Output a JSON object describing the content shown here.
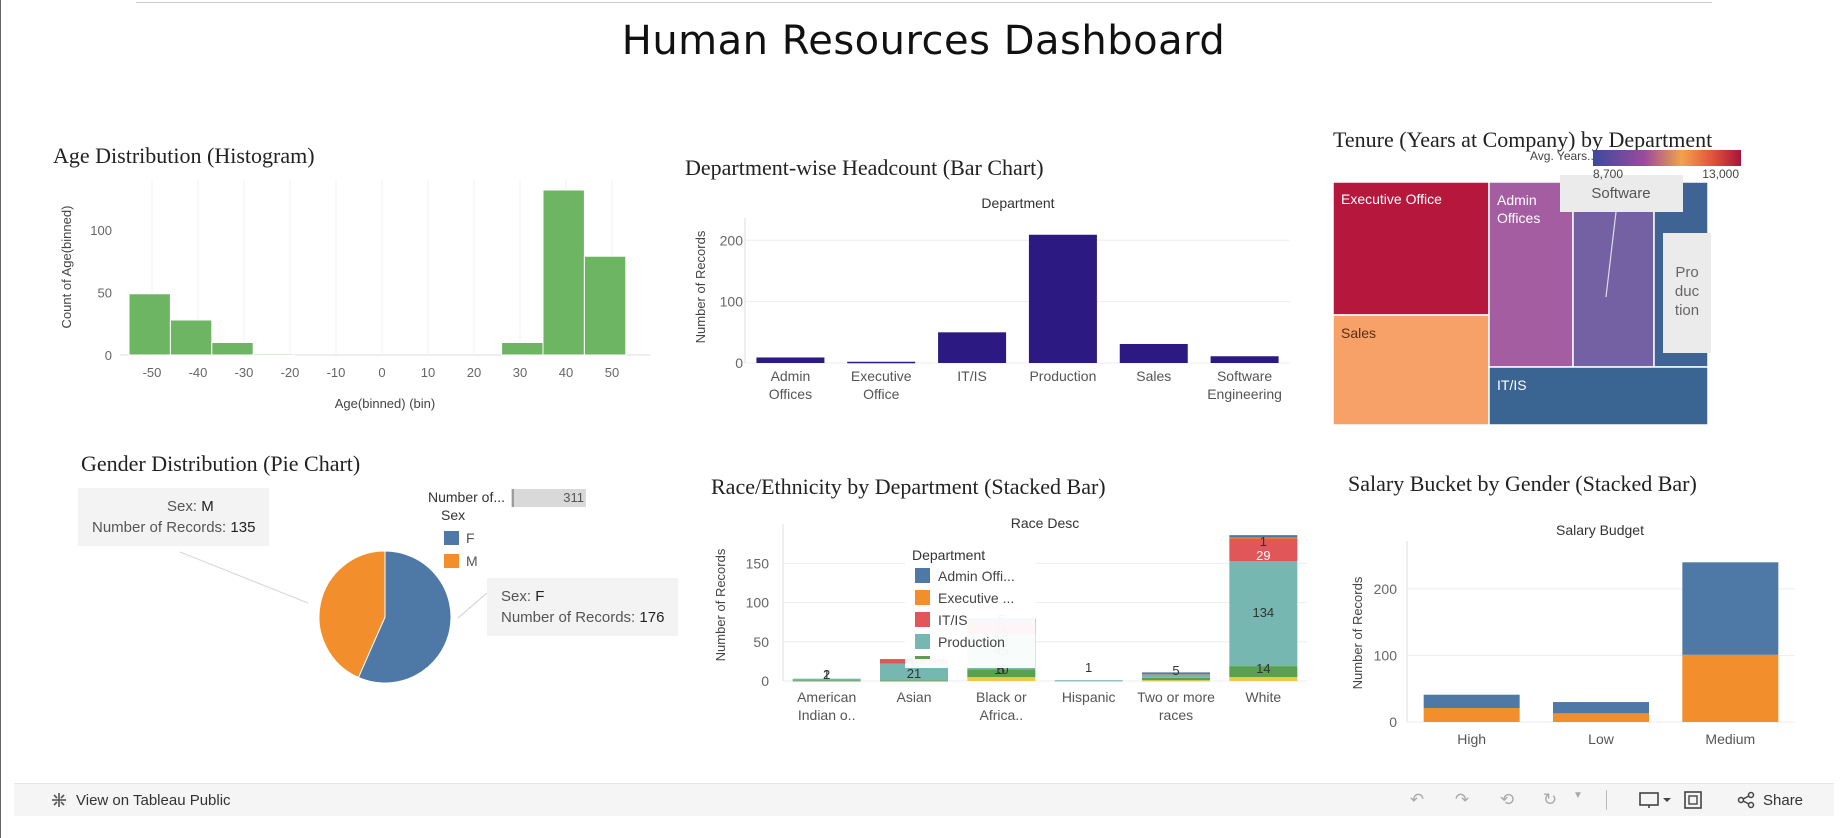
{
  "dashboard_title": "Human Resources Dashboard",
  "footer": {
    "view_link": "View on Tableau Public",
    "share_label": "Share"
  },
  "colors": {
    "green": "#6db562",
    "indigo": "#2c1a82",
    "blue": "#4e79a7",
    "orange": "#f28e2b",
    "red": "#e15759",
    "teal": "#76b7b2",
    "dark_green": "#59a14f",
    "yellow": "#edc948"
  },
  "chart_data": [
    {
      "id": "age",
      "type": "bar",
      "title": "Age Distribution (Histogram)",
      "xlabel": "Age(binned) (bin)",
      "ylabel": "Count of Age(binned)",
      "x_ticks": [
        "-50",
        "-40",
        "-30",
        "-20",
        "-10",
        "0",
        "10",
        "20",
        "30",
        "40",
        "50"
      ],
      "y_ticks": [
        "0",
        "50",
        "100"
      ],
      "ylim": [
        0,
        140
      ],
      "bins": [
        {
          "start": -55,
          "end": -46,
          "value": 49
        },
        {
          "start": -46,
          "end": -37,
          "value": 28
        },
        {
          "start": -37,
          "end": -28,
          "value": 10
        },
        {
          "start": -28,
          "end": -19,
          "value": 1
        },
        {
          "start": 26,
          "end": 35,
          "value": 10
        },
        {
          "start": 35,
          "end": 44,
          "value": 132
        },
        {
          "start": 44,
          "end": 53,
          "value": 79
        }
      ]
    },
    {
      "id": "dept",
      "type": "bar",
      "title": "Department-wise Headcount (Bar Chart)",
      "header": "Department",
      "ylabel": "Number of Records",
      "y_ticks": [
        "0",
        "100",
        "200"
      ],
      "ylim": [
        0,
        220
      ],
      "categories": [
        [
          "Admin",
          "Offices"
        ],
        [
          "Executive",
          "Office"
        ],
        [
          "IT/IS"
        ],
        [
          "Production"
        ],
        [
          "Sales"
        ],
        [
          "Software",
          "Engineering"
        ]
      ],
      "values": [
        9,
        2,
        50,
        209,
        31,
        11
      ]
    },
    {
      "id": "tenure",
      "type": "heatmap",
      "title": "Tenure (Years at Company) by Department",
      "legend_title": "Avg. Years...",
      "legend_range": [
        "8,700",
        "13,000"
      ],
      "cells": [
        {
          "label": "Executive Office",
          "color": "#b5173d"
        },
        {
          "label": "Sales",
          "color": "#f7a068"
        },
        {
          "label": "Admin Offices",
          "color": "#a45da0"
        },
        {
          "label": "",
          "color": "#7461a4"
        },
        {
          "label": "",
          "color": "#3f6493"
        },
        {
          "label": "IT/IS",
          "color": "#3a6593"
        }
      ],
      "tooltip_software": "Software",
      "tooltip_production": [
        "Pro",
        "duc",
        "tion"
      ]
    },
    {
      "id": "gender",
      "type": "pie",
      "title": "Gender Distribution (Pie Chart)",
      "legend_header_label": "Number of...",
      "legend_header_value": "311",
      "legend_title": "Sex",
      "slices": [
        {
          "label": "F",
          "value": 176
        },
        {
          "label": "M",
          "value": 135
        }
      ],
      "tooltip_sex_label": "Sex:",
      "tooltip_records_label": "Number of Records:"
    },
    {
      "id": "race",
      "type": "bar",
      "title": "Race/Ethnicity by Department (Stacked Bar)",
      "header": "Race Desc",
      "ylabel": "Number of Records",
      "y_ticks": [
        "0",
        "50",
        "100",
        "150"
      ],
      "ylim": [
        0,
        190
      ],
      "categories": [
        [
          "American",
          "Indian o.."
        ],
        [
          "Asian"
        ],
        [
          "Black or",
          "Africa.."
        ],
        [
          "Hispanic"
        ],
        [
          "Two or more",
          "races"
        ],
        [
          "White"
        ]
      ],
      "legend_title": "Department",
      "legend_items": [
        "Admin Offi...",
        "Executive ...",
        "IT/IS",
        "Production"
      ],
      "series": [
        {
          "name": "Admin Offi...",
          "values": [
            0,
            0,
            5,
            0,
            1,
            3
          ]
        },
        {
          "name": "Executive ...",
          "values": [
            0,
            0,
            0,
            0,
            0,
            1
          ]
        },
        {
          "name": "IT/IS",
          "values": [
            0,
            6,
            15,
            0,
            1,
            29
          ]
        },
        {
          "name": "Production",
          "values": [
            2,
            21,
            45,
            1,
            5,
            134
          ]
        },
        {
          "name": "",
          "values": [
            1,
            1,
            10,
            0,
            3,
            14
          ]
        },
        {
          "name": "",
          "values": [
            0,
            0,
            5,
            0,
            1,
            5
          ]
        }
      ],
      "data_labels": [
        {
          "cat": 0,
          "text": "2"
        },
        {
          "cat": 0,
          "text": "1"
        },
        {
          "cat": 1,
          "text": "6"
        },
        {
          "cat": 1,
          "text": "21"
        },
        {
          "cat": 2,
          "text": "5"
        },
        {
          "cat": 2,
          "text": "15"
        },
        {
          "cat": 2,
          "text": "45"
        },
        {
          "cat": 2,
          "text": "10"
        },
        {
          "cat": 2,
          "text": "5"
        },
        {
          "cat": 3,
          "text": "1"
        },
        {
          "cat": 4,
          "text": "5"
        },
        {
          "cat": 5,
          "text": "1"
        },
        {
          "cat": 5,
          "text": "29"
        },
        {
          "cat": 5,
          "text": "134"
        },
        {
          "cat": 5,
          "text": "14"
        }
      ]
    },
    {
      "id": "salary",
      "type": "bar",
      "title": "Salary Bucket by Gender (Stacked Bar)",
      "header": "Salary Budget",
      "ylabel": "Number of Records",
      "y_ticks": [
        "0",
        "100",
        "200"
      ],
      "ylim": [
        0,
        260
      ],
      "categories": [
        "High",
        "Low",
        "Medium"
      ],
      "series": [
        {
          "name": "",
          "values": [
            21,
            13,
            101
          ]
        },
        {
          "name": "",
          "values": [
            20,
            17,
            139
          ]
        }
      ]
    }
  ]
}
